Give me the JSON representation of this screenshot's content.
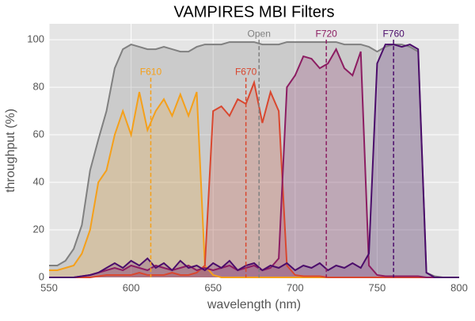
{
  "chart_data": {
    "type": "line",
    "title": "VAMPIRES MBI Filters",
    "x_label": "wavelength (nm)",
    "y_label": "throughput (%)",
    "xlim": [
      550,
      800
    ],
    "ylim": [
      0,
      106.7
    ],
    "xticks": [
      550,
      600,
      650,
      700,
      750,
      800
    ],
    "yticks": [
      0,
      20,
      40,
      60,
      80,
      100
    ],
    "grid": true,
    "fill": true,
    "x": [
      550,
      555,
      560,
      565,
      570,
      575,
      580,
      585,
      590,
      595,
      600,
      605,
      610,
      615,
      620,
      625,
      630,
      635,
      640,
      645,
      650,
      655,
      660,
      665,
      670,
      675,
      680,
      685,
      690,
      695,
      700,
      705,
      710,
      715,
      720,
      725,
      730,
      735,
      740,
      745,
      750,
      755,
      760,
      765,
      770,
      775,
      780,
      785,
      790,
      795,
      800
    ],
    "series": [
      {
        "name": "Open",
        "color": "#808080",
        "values": [
          5,
          5,
          7,
          12,
          22,
          45,
          58,
          70,
          88,
          96,
          98,
          97,
          96,
          96,
          97,
          96,
          95,
          95,
          97,
          98,
          98,
          98,
          99,
          99,
          99,
          99,
          98,
          98,
          98,
          99,
          99,
          99,
          99,
          99,
          99,
          99,
          98,
          98,
          98,
          97,
          95,
          97,
          98,
          98,
          97,
          95,
          2,
          0.5,
          0,
          0,
          0
        ]
      },
      {
        "name": "F610",
        "color": "#f5a01a",
        "values": [
          3,
          3,
          4,
          5,
          10,
          20,
          40,
          45,
          60,
          70,
          60,
          78,
          62,
          70,
          75,
          68,
          77,
          68,
          78,
          5,
          1,
          0,
          0,
          0,
          0,
          0,
          0,
          0,
          0,
          0,
          0,
          0,
          0,
          0,
          0,
          0,
          0,
          0,
          0,
          0,
          0,
          0,
          0,
          0,
          0,
          0,
          0,
          0,
          0,
          0,
          0
        ]
      },
      {
        "name": "F670",
        "color": "#d9472f",
        "values": [
          0,
          0,
          0,
          0,
          0,
          0,
          0.5,
          1,
          1,
          1,
          1,
          2,
          1,
          1,
          1,
          2,
          1,
          1,
          2,
          5,
          70,
          72,
          68,
          75,
          73,
          82,
          65,
          78,
          70,
          5,
          1,
          0.5,
          0.5,
          0.5,
          0,
          0,
          0,
          0,
          0,
          0,
          0,
          0,
          0,
          0,
          0,
          0,
          0,
          0,
          0,
          0,
          0
        ]
      },
      {
        "name": "F720",
        "color": "#8c1d62",
        "values": [
          0,
          0,
          0,
          0,
          0.5,
          1,
          2,
          3,
          4,
          3,
          5,
          4,
          3,
          5,
          4,
          3,
          4,
          5,
          3,
          4,
          3,
          4,
          5,
          3,
          4,
          5,
          3,
          4,
          8,
          80,
          85,
          93,
          92,
          88,
          90,
          96,
          88,
          85,
          95,
          5,
          1,
          0.5,
          0.5,
          0.5,
          0.5,
          0.5,
          0,
          0,
          0,
          0,
          0
        ]
      },
      {
        "name": "F760",
        "color": "#4b0c6b",
        "values": [
          0,
          0,
          0,
          0,
          0.5,
          1,
          2,
          4,
          6,
          4,
          7,
          5,
          8,
          4,
          6,
          3,
          7,
          4,
          5,
          3,
          6,
          4,
          7,
          3,
          5,
          6,
          3,
          5,
          4,
          6,
          3,
          5,
          4,
          6,
          3,
          5,
          4,
          6,
          4,
          10,
          90,
          98,
          98,
          97,
          98,
          96,
          2,
          0,
          0,
          0,
          0
        ]
      }
    ],
    "annotations": [
      {
        "text": "F610",
        "x": 612,
        "y": 86,
        "color": "#f5a01a"
      },
      {
        "text": "F670",
        "x": 670,
        "y": 86,
        "color": "#d9472f"
      },
      {
        "text": "Open",
        "x": 678,
        "y": 102,
        "color": "#808080"
      },
      {
        "text": "F720",
        "x": 719,
        "y": 102,
        "color": "#8c1d62"
      },
      {
        "text": "F760",
        "x": 760,
        "y": 102,
        "color": "#4b0c6b"
      }
    ]
  }
}
